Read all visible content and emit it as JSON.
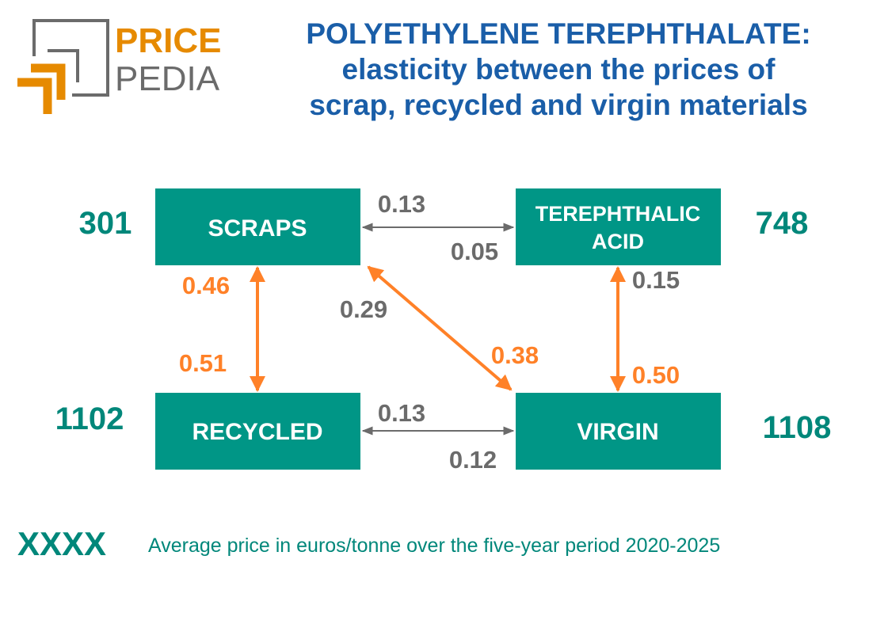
{
  "logo": {
    "text_top": "PRICE",
    "text_bottom": "PEDIA",
    "colors": {
      "orange": "#e68a00",
      "gray": "#6b6b6b"
    }
  },
  "title": {
    "line1": "POLYETHYLENE TEREPHTHALATE:",
    "line2": "elasticity between the prices of",
    "line3": "scrap, recycled and virgin materials"
  },
  "colors": {
    "box": "#009686",
    "price": "#00877a",
    "orange_arrow": "#ff8128",
    "gray_arrow": "#6b6b6b",
    "title": "#1a5ea8"
  },
  "nodes": {
    "scraps": {
      "label": "SCRAPS",
      "price": "301"
    },
    "terephthalic_acid": {
      "label_line1": "TEREPHTHALIC",
      "label_line2": "ACID",
      "price": "748"
    },
    "recycled": {
      "label": "RECYCLED",
      "price": "1102"
    },
    "virgin": {
      "label": "VIRGIN",
      "price": "1108"
    }
  },
  "edges": {
    "scraps_ta": {
      "top": "0.13",
      "bottom": "0.05"
    },
    "recycled_virgin": {
      "top": "0.13",
      "bottom": "0.12"
    },
    "scraps_recycled": {
      "top": "0.46",
      "bottom": "0.51"
    },
    "scraps_virgin": {
      "top": "0.29",
      "bottom": "0.38"
    },
    "ta_virgin": {
      "top": "0.15",
      "bottom": "0.50"
    }
  },
  "legend": {
    "key": "XXXX",
    "text": "Average price in euros/tonne over the five-year period 2020-2025"
  }
}
